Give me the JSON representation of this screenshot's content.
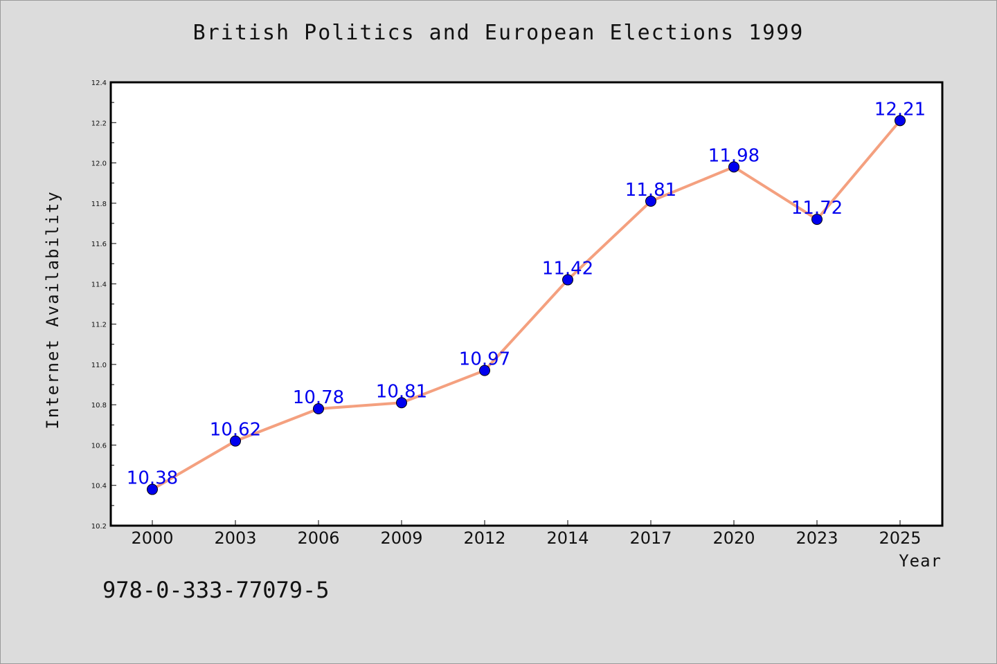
{
  "page": {
    "background": "#dcdcdc",
    "footer_code": "978-0-333-77079-5"
  },
  "chart_data": {
    "type": "line",
    "title": "British Politics and European Elections 1999",
    "xlabel": "Year",
    "ylabel": "Internet Availability",
    "categories": [
      "2000",
      "2003",
      "2006",
      "2009",
      "2012",
      "2014",
      "2017",
      "2020",
      "2023",
      "2025"
    ],
    "series": [
      {
        "values": [
          10.38,
          10.62,
          10.78,
          10.81,
          10.97,
          11.42,
          11.81,
          11.98,
          11.72,
          12.21
        ],
        "line_color": "#f4a07f",
        "marker_color": "#0000ee"
      }
    ],
    "ylim": [
      10.2,
      12.4
    ],
    "yticks": [
      10.2,
      10.4,
      10.6,
      10.8,
      11.0,
      11.2,
      11.4,
      11.6,
      11.8,
      12.0,
      12.2,
      12.4
    ],
    "ytick_labels": [
      "10.2",
      "10.4",
      "10.6",
      "10.8",
      "11.0",
      "11.2",
      "11.4",
      "11.6",
      "11.8",
      "12.0",
      "12.2",
      "12.4"
    ],
    "data_labels": [
      "10.38",
      "10.62",
      "10.78",
      "10.81",
      "10.97",
      "11.42",
      "11.81",
      "11.98",
      "11.72",
      "12.21"
    ],
    "grid": false,
    "legend": "none"
  }
}
